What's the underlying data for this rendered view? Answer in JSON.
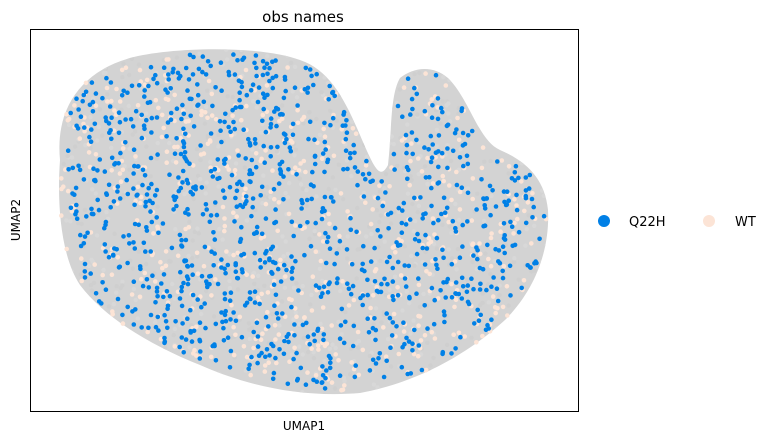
{
  "chart_data": {
    "type": "scatter",
    "title": "obs names",
    "xlabel": "UMAP1",
    "ylabel": "UMAP2",
    "xlim": [
      -1,
      1
    ],
    "ylim": [
      -1,
      1
    ],
    "ticks": "none",
    "grid": false,
    "legend_position": "right",
    "background_color": "#d3d3d3",
    "series": [
      {
        "name": "Q22H",
        "color": "#0080e6"
      },
      {
        "name": "WT",
        "color": "#fce4d6"
      }
    ]
  }
}
